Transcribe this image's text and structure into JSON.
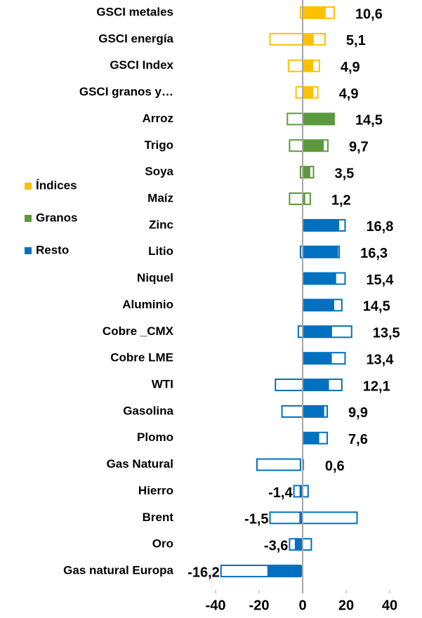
{
  "chart_data": {
    "type": "range-bar",
    "categories": [
      "GSCI  metales",
      "GSCI  energía",
      "GSCI Index",
      "GSCI granos y…",
      "Arroz",
      "Trigo",
      "Soya",
      "Maíz",
      "Zinc",
      "Litio",
      "Niquel",
      "Aluminio",
      "Cobre _CMX",
      "Cobre LME",
      "WTI",
      "Gasolina",
      "Plomo",
      "Gas Natural",
      "Hierro",
      "Brent",
      "Oro",
      "Gas natural Europa"
    ],
    "values": [
      10.6,
      5.1,
      4.9,
      4.9,
      14.5,
      9.7,
      3.5,
      1.2,
      16.8,
      16.3,
      15.4,
      14.5,
      13.5,
      13.4,
      12.1,
      9.9,
      7.6,
      0.6,
      -1.4,
      -1.5,
      -3.6,
      -16.2
    ],
    "value_labels": [
      "10,6",
      "5,1",
      "4,9",
      "4,9",
      "14,5",
      "9,7",
      "3,5",
      "1,2",
      "16,8",
      "16,3",
      "15,4",
      "14,5",
      "13,5",
      "13,4",
      "12,1",
      "9,9",
      "7,6",
      "0,6",
      "-1,4",
      "-1,5",
      "-3,6",
      "-16,2"
    ],
    "range_low": [
      -1,
      -15,
      -6.5,
      -3,
      -7,
      -6,
      -1,
      -6,
      0,
      -1,
      0,
      0,
      -2,
      0,
      -12.5,
      -9.5,
      0,
      -21,
      -4,
      -15,
      -6,
      -37.5
    ],
    "range_high": [
      14.5,
      10.3,
      7.7,
      7,
      14.5,
      11.6,
      5,
      3.5,
      19.5,
      16.8,
      19.5,
      18,
      22.5,
      19.5,
      18,
      11.3,
      11.3,
      -1,
      2.5,
      25,
      4,
      -1
    ],
    "groups": [
      0,
      0,
      0,
      0,
      1,
      1,
      1,
      1,
      2,
      2,
      2,
      2,
      2,
      2,
      2,
      2,
      2,
      2,
      2,
      2,
      2,
      2
    ],
    "legend": [
      {
        "name": "Índices",
        "color": "#ffc000"
      },
      {
        "name": "Granos",
        "color": "#5b9a3c"
      },
      {
        "name": "Resto",
        "color": "#0070c0"
      }
    ],
    "xlim": [
      -40,
      40
    ],
    "xticks": [
      -40,
      -20,
      0,
      20,
      40
    ]
  }
}
